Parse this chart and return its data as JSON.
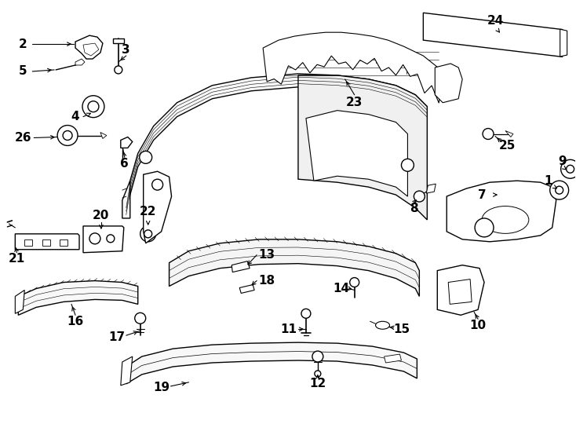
{
  "bg_color": "#ffffff",
  "line_color": "#000000",
  "fig_width": 7.34,
  "fig_height": 5.4,
  "dpi": 100,
  "label_fontsize": 11
}
